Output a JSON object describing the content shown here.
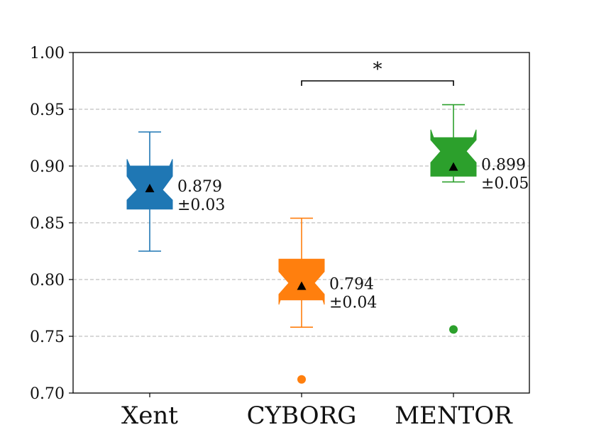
{
  "chart_data": {
    "type": "boxplot",
    "title": "",
    "xlabel": "",
    "ylabel": "",
    "ylim": [
      0.7,
      1.0
    ],
    "yticks": [
      "0.70",
      "0.75",
      "0.80",
      "0.85",
      "0.90",
      "0.95",
      "1.00"
    ],
    "grid": "horizontal dashed",
    "categories": [
      "Xent",
      "CYBORG",
      "MENTOR"
    ],
    "boxes": [
      {
        "category": "Xent",
        "color": "#1f77b4",
        "whisker_low": 0.825,
        "q1": 0.862,
        "median": 0.879,
        "q3": 0.9,
        "whisker_high": 0.93,
        "notch_low": 0.87,
        "notch_high": 0.891,
        "flare_top": 0.906,
        "flare_bottom": 0.862,
        "mean": 0.88,
        "outliers": [],
        "label_mean": "0.879",
        "label_std": "±0.03"
      },
      {
        "category": "CYBORG",
        "color": "#ff7f0e",
        "whisker_low": 0.758,
        "q1": 0.782,
        "median": 0.797,
        "q3": 0.818,
        "whisker_high": 0.854,
        "notch_low": 0.787,
        "notch_high": 0.807,
        "flare_top": 0.818,
        "flare_bottom": 0.778,
        "mean": 0.794,
        "outliers": [
          0.712
        ],
        "label_mean": "0.794",
        "label_std": "±0.04"
      },
      {
        "category": "MENTOR",
        "color": "#2ca02c",
        "whisker_low": 0.886,
        "q1": 0.891,
        "median": 0.913,
        "q3": 0.925,
        "whisker_high": 0.954,
        "notch_low": 0.903,
        "notch_high": 0.923,
        "flare_top": 0.932,
        "flare_bottom": 0.891,
        "mean": 0.899,
        "outliers": [
          0.756
        ],
        "label_mean": "0.899",
        "label_std": "±0.05"
      }
    ],
    "significance": {
      "from": "CYBORG",
      "to": "MENTOR",
      "y": 0.975,
      "label": "*"
    }
  }
}
